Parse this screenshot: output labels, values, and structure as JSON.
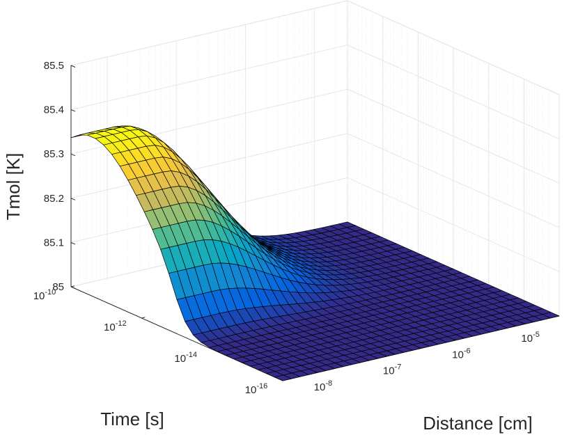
{
  "chart_data": {
    "type": "surface",
    "title": "",
    "xlabel": "Time [s]",
    "ylabel": "Distance [cm]",
    "zlabel": "Tmol [K]",
    "x_scale": "log",
    "y_scale": "log",
    "xlim": [
      1e-16,
      1e-10
    ],
    "ylim": [
      3e-09,
      3e-05
    ],
    "zlim": [
      85,
      85.5
    ],
    "grid": true,
    "colormap": "parula",
    "x_ticks": [
      {
        "base": "10",
        "exp": "-10"
      },
      {
        "base": "10",
        "exp": "-12"
      },
      {
        "base": "10",
        "exp": "-14"
      },
      {
        "base": "10",
        "exp": "-16"
      }
    ],
    "y_ticks": [
      {
        "base": "10",
        "exp": "-8"
      },
      {
        "base": "10",
        "exp": "-7"
      },
      {
        "base": "10",
        "exp": "-6"
      },
      {
        "base": "10",
        "exp": "-5"
      }
    ],
    "z_ticks": [
      "85",
      "85.1",
      "85.2",
      "85.3",
      "85.4",
      "85.5"
    ],
    "surface": {
      "baseline": 85.0,
      "peak_value": 85.36,
      "peak_time_range": [
        1e-12,
        1e-10
      ],
      "pulse_rise_time": 1e-13,
      "near_distance": 1e-08,
      "decay_distance": 1e-06
    }
  }
}
